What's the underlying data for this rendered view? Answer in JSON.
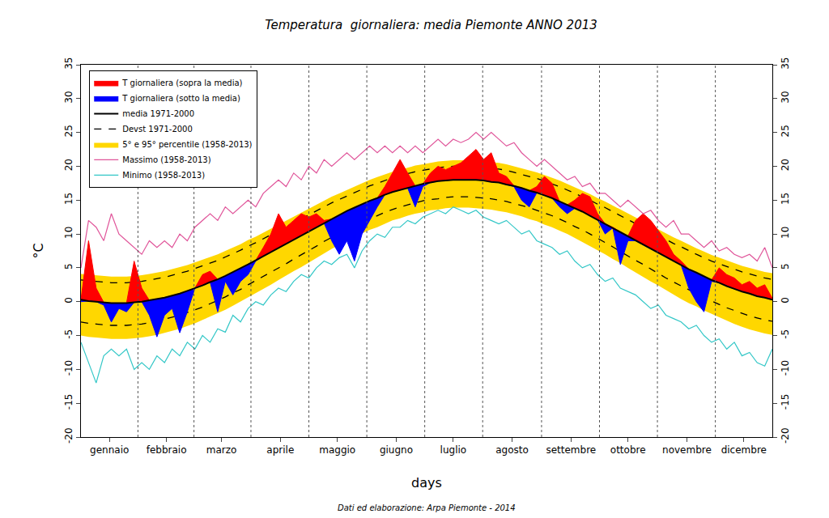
{
  "chart_data": {
    "type": "line",
    "title": "Temperatura  giornaliera: media Piemonte ANNO 2013",
    "x_label": "days",
    "y_label": "°C",
    "caption": "Dati ed elaborazione: Arpa Piemonte - 2014",
    "legend": "upper left",
    "grid": false,
    "xlim": [
      1,
      365
    ],
    "xticks": [
      {
        "value": 16,
        "label": "gennaio"
      },
      {
        "value": 46,
        "label": "febbraio"
      },
      {
        "value": 75,
        "label": "marzo"
      },
      {
        "value": 106,
        "label": "aprile"
      },
      {
        "value": 136,
        "label": "maggio"
      },
      {
        "value": 167,
        "label": "giugno"
      },
      {
        "value": 197,
        "label": "luglio"
      },
      {
        "value": 228,
        "label": "agosto"
      },
      {
        "value": 259,
        "label": "settembre"
      },
      {
        "value": 289,
        "label": "ottobre"
      },
      {
        "value": 320,
        "label": "novembre"
      },
      {
        "value": 350,
        "label": "dicembre"
      }
    ],
    "ylim": [
      -20,
      35
    ],
    "yticks": [
      -20,
      -15,
      -10,
      -5,
      0,
      5,
      10,
      15,
      20,
      25,
      30,
      35
    ],
    "x": [
      1,
      5,
      9,
      13,
      17,
      21,
      25,
      29,
      33,
      37,
      41,
      45,
      49,
      53,
      57,
      61,
      65,
      69,
      73,
      77,
      81,
      85,
      89,
      93,
      97,
      101,
      105,
      109,
      113,
      117,
      121,
      125,
      129,
      133,
      137,
      141,
      145,
      149,
      153,
      157,
      161,
      165,
      169,
      173,
      177,
      181,
      185,
      189,
      193,
      197,
      201,
      205,
      209,
      213,
      217,
      221,
      225,
      229,
      233,
      237,
      241,
      245,
      249,
      253,
      257,
      261,
      265,
      269,
      273,
      277,
      281,
      285,
      289,
      293,
      297,
      301,
      305,
      309,
      313,
      317,
      321,
      325,
      329,
      333,
      337,
      341,
      345,
      349,
      353,
      357,
      361,
      365
    ],
    "series": [
      {
        "type": "area",
        "above": {
          "name": "T giornaliera (sopra la media)",
          "color": "#ff0000"
        },
        "below": {
          "name": "T giornaliera (sotto la media)",
          "color": "#0000ff"
        },
        "values": [
          0,
          9,
          2,
          -0.5,
          -3,
          -1,
          -1.5,
          6,
          2,
          -2,
          -5.2,
          -2,
          -1,
          -4.6,
          -1.5,
          2,
          4,
          4.5,
          -1.5,
          3,
          1,
          3,
          4,
          6,
          8,
          10,
          13,
          11,
          12,
          13,
          12.5,
          13,
          12,
          9,
          7,
          9,
          6,
          10,
          12,
          14,
          17,
          19,
          21,
          19,
          14,
          17,
          19,
          20,
          19.5,
          20,
          20.5,
          21.5,
          22.5,
          21,
          22,
          19,
          18.5,
          17,
          15,
          14,
          17,
          18.5,
          17.5,
          14,
          13,
          15,
          16,
          15.5,
          13,
          10,
          11,
          5.5,
          9,
          12,
          13,
          12,
          10.5,
          9,
          7,
          6,
          2,
          0,
          -1.5,
          3,
          5,
          4,
          3.5,
          2.5,
          3,
          2,
          2.5,
          0.5
        ]
      },
      {
        "type": "line",
        "name": "media 1971-2000",
        "color": "#000000",
        "line_style": "solid",
        "values": [
          0.3,
          0.1,
          0,
          -0.1,
          -0.2,
          -0.2,
          -0.2,
          -0.1,
          0,
          0.2,
          0.4,
          0.6,
          0.9,
          1.2,
          1.6,
          2,
          2.4,
          2.9,
          3.3,
          3.8,
          4.4,
          4.9,
          5.5,
          6.1,
          6.7,
          7.3,
          7.9,
          8.6,
          9.2,
          9.8,
          10.4,
          11,
          11.6,
          12.2,
          12.8,
          13.4,
          13.9,
          14.4,
          14.9,
          15.3,
          15.8,
          16.2,
          16.5,
          16.8,
          17.1,
          17.4,
          17.6,
          17.8,
          17.9,
          18,
          18,
          18,
          18,
          17.9,
          17.7,
          17.6,
          17.3,
          17.1,
          16.8,
          16.4,
          16.1,
          15.7,
          15.3,
          14.8,
          14.3,
          13.8,
          13.3,
          12.7,
          12.1,
          11.5,
          10.9,
          10.3,
          9.7,
          9,
          8.4,
          7.8,
          7.2,
          6.6,
          6,
          5.4,
          4.8,
          4.3,
          3.7,
          3.2,
          2.8,
          2.3,
          1.9,
          1.5,
          1.2,
          0.8,
          0.6,
          0.3
        ]
      },
      {
        "type": "line",
        "name": "Devst 1971-2000",
        "color": "#000000",
        "line_style": "dashed",
        "upper": [
          3.2,
          3.1,
          3.0,
          2.9,
          2.8,
          2.8,
          2.8,
          2.9,
          3.0,
          3.2,
          3.4,
          3.6,
          3.9,
          4.2,
          4.5,
          4.9,
          5.3,
          5.7,
          6.1,
          6.6,
          7.1,
          7.6,
          8.2,
          8.7,
          9.3,
          9.9,
          10.5,
          11.1,
          11.7,
          12.3,
          12.8,
          13.4,
          14.0,
          14.6,
          15.1,
          15.6,
          16.1,
          16.6,
          17.1,
          17.5,
          17.9,
          18.3,
          18.6,
          18.9,
          19.2,
          19.4,
          19.6,
          19.8,
          19.9,
          20.0,
          20.0,
          20.0,
          20.0,
          19.9,
          19.7,
          19.6,
          19.4,
          19.1,
          18.8,
          18.5,
          18.2,
          17.8,
          17.4,
          17.0,
          16.5,
          16.0,
          15.5,
          15.0,
          14.4,
          13.9,
          13.3,
          12.7,
          12.1,
          11.5,
          10.9,
          10.3,
          9.8,
          9.2,
          8.6,
          8.1,
          7.5,
          7.0,
          6.5,
          6.0,
          5.6,
          5.2,
          4.8,
          4.4,
          4.1,
          3.8,
          3.5,
          3.3
        ],
        "lower": [
          -3.0,
          -3.2,
          -3.3,
          -3.4,
          -3.5,
          -3.5,
          -3.5,
          -3.4,
          -3.3,
          -3.1,
          -2.9,
          -2.6,
          -2.3,
          -2.0,
          -1.6,
          -1.2,
          -0.8,
          -0.3,
          0.2,
          0.7,
          1.3,
          1.8,
          2.5,
          3.1,
          3.7,
          4.3,
          5.0,
          5.6,
          6.3,
          6.9,
          7.6,
          8.2,
          8.9,
          9.5,
          10.1,
          10.7,
          11.2,
          11.8,
          12.2,
          12.7,
          13.2,
          13.6,
          14.0,
          14.3,
          14.6,
          14.9,
          15.1,
          15.2,
          15.4,
          15.5,
          15.5,
          15.5,
          15.4,
          15.3,
          15.2,
          15.0,
          14.8,
          14.5,
          14.2,
          13.9,
          13.5,
          13.1,
          12.7,
          12.2,
          11.7,
          11.1,
          10.6,
          10.0,
          9.4,
          8.7,
          8.1,
          7.4,
          6.8,
          6.1,
          5.5,
          4.8,
          4.2,
          3.5,
          2.9,
          2.3,
          1.7,
          1.2,
          0.6,
          0.1,
          -0.4,
          -0.9,
          -1.3,
          -1.7,
          -2.1,
          -2.4,
          -2.7,
          -2.9
        ]
      },
      {
        "type": "band",
        "name": "5° e 95° percentile (1958-2013)",
        "color": "#ffd700",
        "upper": [
          4.1,
          4.0,
          3.9,
          3.8,
          3.7,
          3.7,
          3.7,
          3.8,
          3.9,
          4.1,
          4.3,
          4.5,
          4.8,
          5.1,
          5.4,
          5.8,
          6.2,
          6.6,
          7.0,
          7.5,
          8.0,
          8.5,
          9.1,
          9.6,
          10.2,
          10.8,
          11.4,
          12.0,
          12.6,
          13.2,
          13.7,
          14.3,
          14.9,
          15.5,
          16.0,
          16.5,
          17.0,
          17.5,
          18.0,
          18.4,
          18.8,
          19.2,
          19.5,
          19.8,
          20.1,
          20.3,
          20.5,
          20.7,
          20.8,
          20.9,
          20.9,
          20.9,
          20.9,
          20.8,
          20.6,
          20.5,
          20.3,
          20.0,
          19.7,
          19.4,
          19.1,
          18.7,
          18.3,
          17.9,
          17.4,
          16.9,
          16.4,
          15.9,
          15.3,
          14.8,
          14.2,
          13.6,
          13.0,
          12.4,
          11.8,
          11.2,
          10.7,
          10.1,
          9.5,
          9.0,
          8.4,
          7.9,
          7.4,
          6.9,
          6.5,
          6.1,
          5.7,
          5.3,
          5.0,
          4.7,
          4.4,
          4.2
        ],
        "lower": [
          -5.0,
          -5.2,
          -5.3,
          -5.4,
          -5.5,
          -5.5,
          -5.5,
          -5.4,
          -5.3,
          -5.1,
          -4.9,
          -4.6,
          -4.3,
          -4.0,
          -3.6,
          -3.2,
          -2.7,
          -2.2,
          -1.7,
          -1.2,
          -0.6,
          0,
          0.6,
          1.2,
          1.9,
          2.5,
          3.2,
          3.8,
          4.5,
          5.1,
          5.8,
          6.5,
          7.1,
          7.8,
          8.4,
          9.0,
          9.5,
          10.1,
          10.6,
          11.0,
          11.5,
          12.0,
          12.3,
          12.7,
          13.0,
          13.2,
          13.5,
          13.6,
          13.8,
          13.9,
          13.9,
          13.9,
          13.8,
          13.7,
          13.6,
          13.4,
          13.2,
          12.9,
          12.6,
          12.2,
          11.9,
          11.4,
          11.0,
          10.5,
          10.0,
          9.4,
          8.8,
          8.3,
          7.6,
          7.0,
          6.3,
          5.7,
          5.0,
          4.3,
          3.7,
          3.0,
          2.4,
          1.7,
          1.1,
          0.4,
          -0.2,
          -0.7,
          -1.3,
          -1.8,
          -2.3,
          -2.8,
          -3.3,
          -3.7,
          -4.1,
          -4.4,
          -4.7,
          -4.9
        ]
      },
      {
        "type": "line",
        "name": "Massimo (1958-2013)",
        "color": "#e0559a",
        "line_style": "solid",
        "values": [
          5,
          12,
          11,
          9,
          13,
          10,
          9,
          8,
          7,
          9,
          8,
          9,
          8,
          10,
          9,
          11,
          12,
          13,
          12,
          14,
          13,
          14,
          15,
          14,
          16,
          17,
          18,
          17,
          19,
          18,
          20,
          19,
          21,
          20,
          21,
          22,
          21,
          22,
          23,
          22,
          23,
          22,
          23,
          22,
          23,
          22,
          23,
          24,
          23,
          24,
          23.5,
          24,
          25,
          24,
          25,
          24,
          23,
          23.5,
          22,
          21,
          20,
          21,
          20,
          19,
          18,
          18.5,
          17,
          17.5,
          16,
          16,
          15,
          14,
          15,
          14,
          13,
          13.5,
          12,
          11,
          12,
          10,
          10,
          9,
          8,
          9,
          7.5,
          8,
          7,
          6.5,
          7,
          6,
          8,
          5
        ]
      },
      {
        "type": "line",
        "name": "Minimo (1958-2013)",
        "color": "#33c7c7",
        "line_style": "solid",
        "values": [
          -6,
          -9,
          -12,
          -8,
          -7,
          -8,
          -7,
          -10,
          -9,
          -10,
          -8,
          -9,
          -7,
          -8,
          -6,
          -7,
          -5,
          -6,
          -4,
          -4.5,
          -2,
          -3,
          -1,
          0,
          -0.5,
          1,
          2,
          1.5,
          3,
          4,
          3.5,
          5,
          6,
          5.5,
          6.5,
          7,
          5,
          7.5,
          9,
          10,
          9.5,
          11,
          11,
          12,
          11.5,
          12.5,
          13,
          13.5,
          13,
          14,
          13.5,
          13,
          13.5,
          12.5,
          12,
          11.5,
          12,
          11,
          10,
          10.5,
          9,
          8.5,
          8,
          7,
          7.5,
          6,
          5,
          5.5,
          4,
          3,
          3.5,
          2,
          1.5,
          1,
          0,
          -1,
          -0.5,
          -2,
          -2.5,
          -3,
          -4,
          -3.5,
          -5,
          -6,
          -5.5,
          -7,
          -6,
          -8,
          -7.5,
          -9,
          -9.5,
          -7
        ]
      }
    ]
  }
}
